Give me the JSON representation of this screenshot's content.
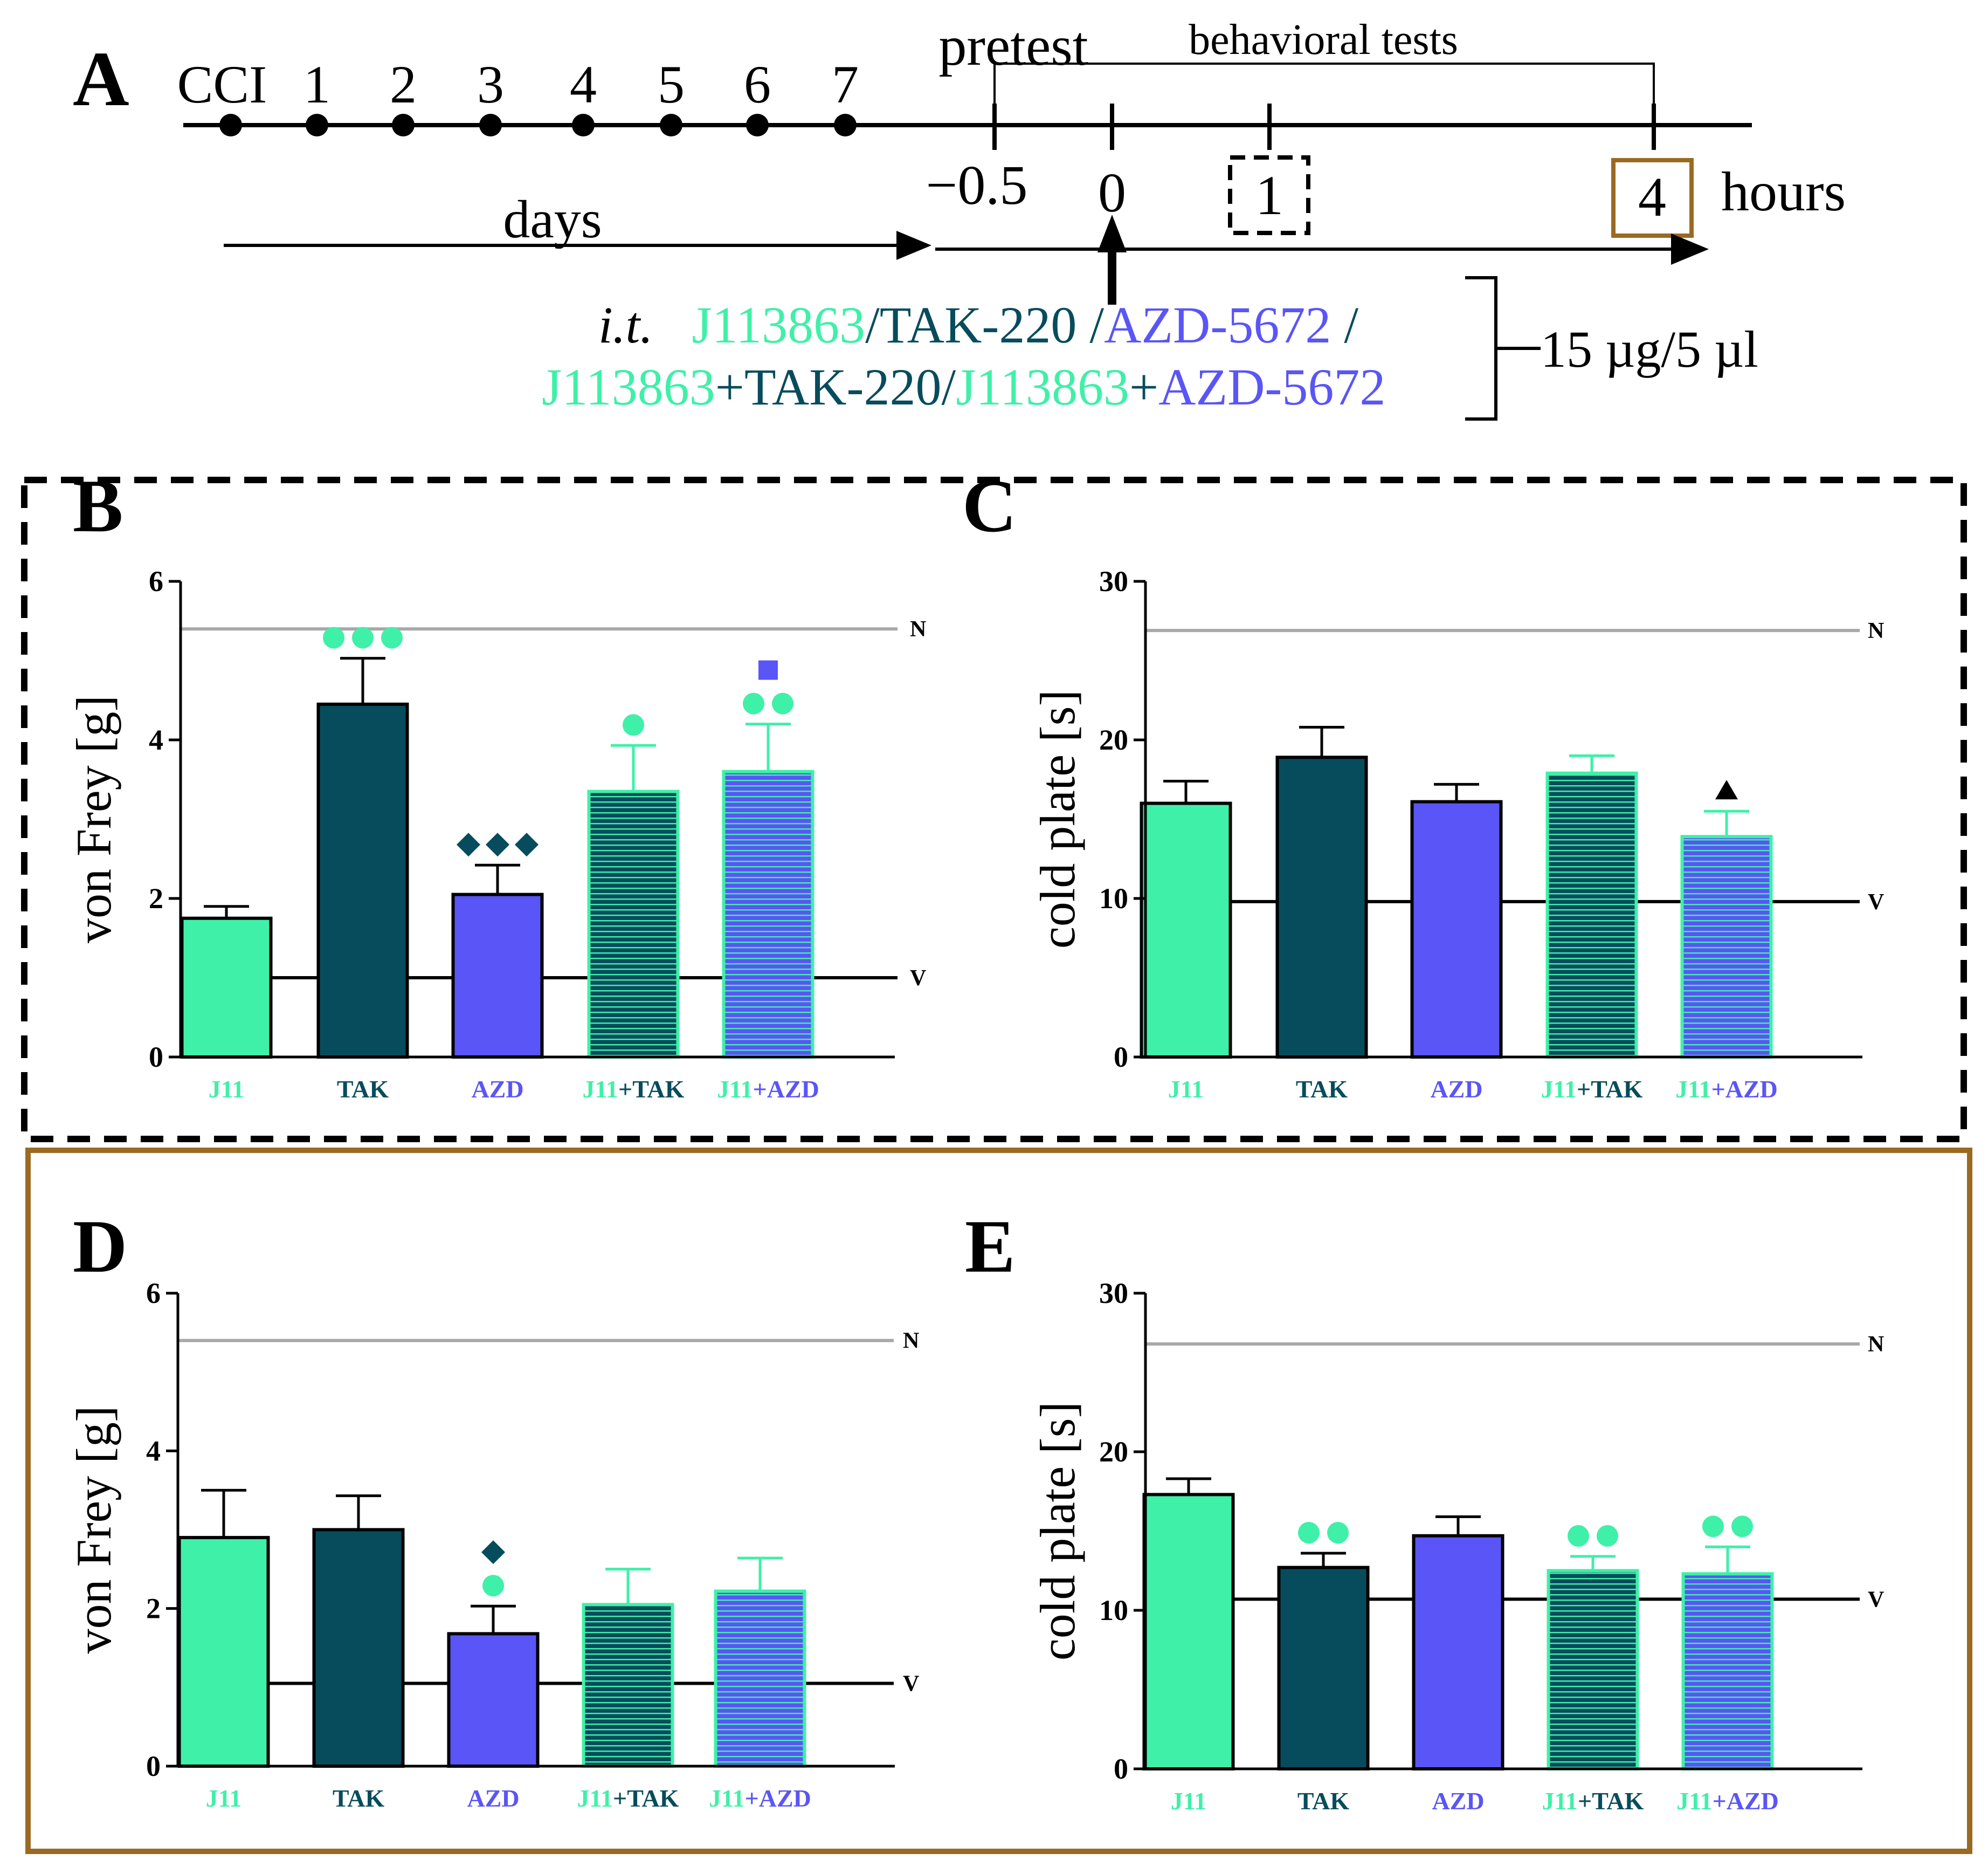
{
  "colors": {
    "j11": "#3ff0a8",
    "tak": "#074c5c",
    "azd": "#5a55f6",
    "ref_n": "#a8a8a8",
    "ref_v": "#000000",
    "box_1h": "#000000",
    "box_4h": "#9a6a22"
  },
  "panel_a": {
    "label": "A",
    "days_ticks": [
      "CCI",
      "1",
      "2",
      "3",
      "4",
      "5",
      "6",
      "7"
    ],
    "days_label": "days",
    "pretest_label": "pretest",
    "behavioral_label": "behavioral tests",
    "hour_ticks": [
      "−0.5",
      "0",
      "1",
      "4"
    ],
    "hours_label": "hours",
    "it_label": "i.t.",
    "line1": [
      {
        "text": "J113863",
        "color": "j11"
      },
      {
        "text": "/",
        "color": "tak"
      },
      {
        "text": "TAK-220",
        "color": "tak"
      },
      {
        "text": " /",
        "color": "tak"
      },
      {
        "text": "AZD-5672",
        "color": "azd"
      },
      {
        "text": " /",
        "color": "tak"
      }
    ],
    "line2": [
      {
        "text": "J113863",
        "color": "j11"
      },
      {
        "text": "+TAK-220/",
        "color": "tak"
      },
      {
        "text": "J113863",
        "color": "j11"
      },
      {
        "text": "+",
        "color": "tak"
      },
      {
        "text": "AZD-5672",
        "color": "azd"
      }
    ],
    "dose_label": "15 µg/5 µl"
  },
  "chart_data": [
    {
      "panel": "B",
      "type": "bar",
      "timepoint_hours": 1,
      "ylabel": "von Frey [g]",
      "ylim": [
        0,
        6
      ],
      "yticks": [
        0,
        2,
        4,
        6
      ],
      "categories": [
        {
          "parts": [
            {
              "t": "J11",
              "c": "j11"
            }
          ]
        },
        {
          "parts": [
            {
              "t": "TAK",
              "c": "tak"
            }
          ]
        },
        {
          "parts": [
            {
              "t": "AZD",
              "c": "azd"
            }
          ]
        },
        {
          "parts": [
            {
              "t": "J11",
              "c": "j11"
            },
            {
              "t": "+TAK",
              "c": "tak"
            }
          ]
        },
        {
          "parts": [
            {
              "t": "J11",
              "c": "j11"
            },
            {
              "t": "+AZD",
              "c": "azd"
            }
          ]
        }
      ],
      "values": [
        1.75,
        4.45,
        2.05,
        3.35,
        3.6
      ],
      "errors": [
        0.15,
        0.58,
        0.37,
        0.58,
        0.6
      ],
      "reference_lines": [
        {
          "label": "N",
          "value": 5.4
        },
        {
          "label": "V",
          "value": 1.0
        }
      ],
      "annotations": [
        {
          "bar": 1,
          "rows": [
            {
              "symbol": "circle",
              "count": 3,
              "color": "j11"
            }
          ]
        },
        {
          "bar": 2,
          "rows": [
            {
              "symbol": "diamond",
              "count": 3,
              "color": "tak"
            }
          ]
        },
        {
          "bar": 3,
          "rows": [
            {
              "symbol": "circle",
              "count": 1,
              "color": "j11"
            }
          ]
        },
        {
          "bar": 4,
          "rows": [
            {
              "symbol": "circle",
              "count": 2,
              "color": "j11"
            },
            {
              "symbol": "square",
              "count": 1,
              "color": "azd"
            }
          ]
        }
      ]
    },
    {
      "panel": "C",
      "type": "bar",
      "timepoint_hours": 1,
      "ylabel": "cold plate [s]",
      "ylim": [
        0,
        30
      ],
      "yticks": [
        0,
        10,
        20,
        30
      ],
      "categories": [
        {
          "parts": [
            {
              "t": "J11",
              "c": "j11"
            }
          ]
        },
        {
          "parts": [
            {
              "t": "TAK",
              "c": "tak"
            }
          ]
        },
        {
          "parts": [
            {
              "t": "AZD",
              "c": "azd"
            }
          ]
        },
        {
          "parts": [
            {
              "t": "J11",
              "c": "j11"
            },
            {
              "t": "+TAK",
              "c": "tak"
            }
          ]
        },
        {
          "parts": [
            {
              "t": "J11",
              "c": "j11"
            },
            {
              "t": "+AZD",
              "c": "azd"
            }
          ]
        }
      ],
      "values": [
        16.0,
        18.9,
        16.1,
        17.9,
        13.9
      ],
      "errors": [
        1.4,
        1.9,
        1.1,
        1.1,
        1.6
      ],
      "reference_lines": [
        {
          "label": "N",
          "value": 26.9
        },
        {
          "label": "V",
          "value": 9.8
        }
      ],
      "annotations": [
        {
          "bar": 4,
          "rows": [
            {
              "symbol": "triangle",
              "count": 1,
              "color": "ref_v"
            }
          ]
        }
      ]
    },
    {
      "panel": "D",
      "type": "bar",
      "timepoint_hours": 4,
      "ylabel": "von Frey [g]",
      "ylim": [
        0,
        6
      ],
      "yticks": [
        0,
        2,
        4,
        6
      ],
      "categories": [
        {
          "parts": [
            {
              "t": "J11",
              "c": "j11"
            }
          ]
        },
        {
          "parts": [
            {
              "t": "TAK",
              "c": "tak"
            }
          ]
        },
        {
          "parts": [
            {
              "t": "AZD",
              "c": "azd"
            }
          ]
        },
        {
          "parts": [
            {
              "t": "J11",
              "c": "j11"
            },
            {
              "t": "+TAK",
              "c": "tak"
            }
          ]
        },
        {
          "parts": [
            {
              "t": "J11",
              "c": "j11"
            },
            {
              "t": "+AZD",
              "c": "azd"
            }
          ]
        }
      ],
      "values": [
        2.9,
        3.0,
        1.68,
        2.05,
        2.22
      ],
      "errors": [
        0.6,
        0.43,
        0.35,
        0.45,
        0.42
      ],
      "reference_lines": [
        {
          "label": "N",
          "value": 5.4
        },
        {
          "label": "V",
          "value": 1.05
        }
      ],
      "annotations": [
        {
          "bar": 2,
          "rows": [
            {
              "symbol": "circle",
              "count": 1,
              "color": "j11"
            },
            {
              "symbol": "diamond",
              "count": 1,
              "color": "tak"
            }
          ]
        }
      ]
    },
    {
      "panel": "E",
      "type": "bar",
      "timepoint_hours": 4,
      "ylabel": "cold plate [s]",
      "ylim": [
        0,
        30
      ],
      "yticks": [
        0,
        10,
        20,
        30
      ],
      "categories": [
        {
          "parts": [
            {
              "t": "J11",
              "c": "j11"
            }
          ]
        },
        {
          "parts": [
            {
              "t": "TAK",
              "c": "tak"
            }
          ]
        },
        {
          "parts": [
            {
              "t": "AZD",
              "c": "azd"
            }
          ]
        },
        {
          "parts": [
            {
              "t": "J11",
              "c": "j11"
            },
            {
              "t": "+TAK",
              "c": "tak"
            }
          ]
        },
        {
          "parts": [
            {
              "t": "J11",
              "c": "j11"
            },
            {
              "t": "+AZD",
              "c": "azd"
            }
          ]
        }
      ],
      "values": [
        17.3,
        12.7,
        14.7,
        12.5,
        12.3
      ],
      "errors": [
        1.0,
        0.9,
        1.2,
        0.9,
        1.7
      ],
      "reference_lines": [
        {
          "label": "N",
          "value": 26.8
        },
        {
          "label": "V",
          "value": 10.7
        }
      ],
      "annotations": [
        {
          "bar": 1,
          "rows": [
            {
              "symbol": "circle",
              "count": 2,
              "color": "j11"
            }
          ]
        },
        {
          "bar": 3,
          "rows": [
            {
              "symbol": "circle",
              "count": 2,
              "color": "j11"
            }
          ]
        },
        {
          "bar": 4,
          "rows": [
            {
              "symbol": "circle",
              "count": 2,
              "color": "j11"
            }
          ]
        }
      ]
    }
  ]
}
